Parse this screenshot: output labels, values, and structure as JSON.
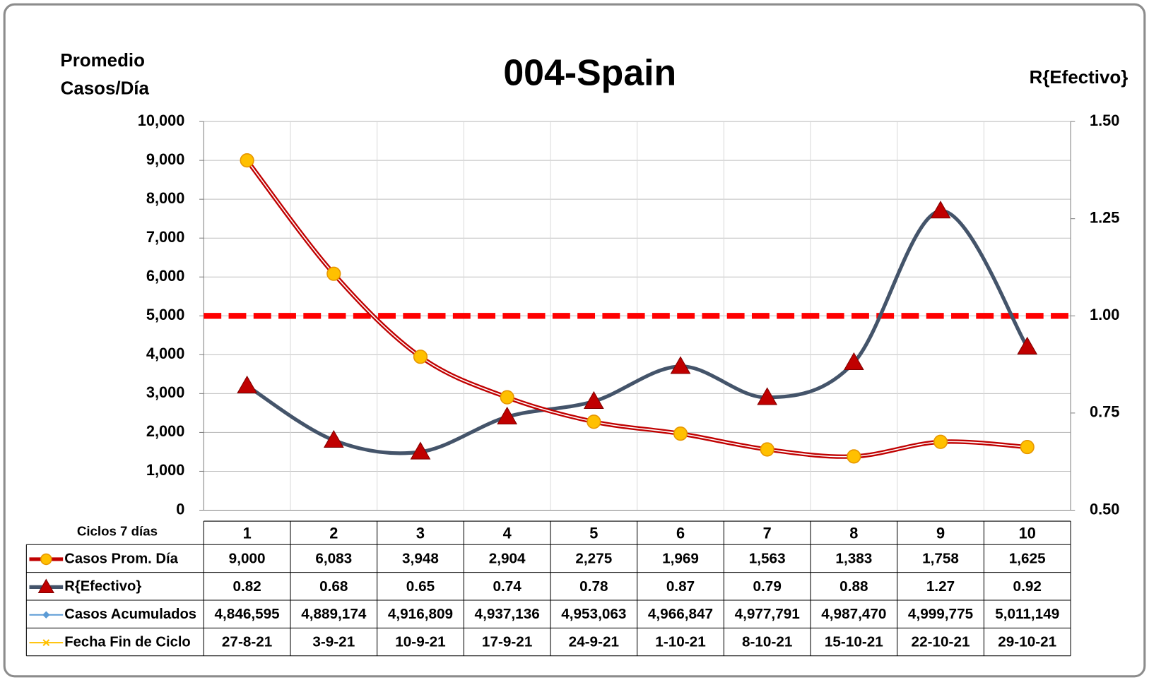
{
  "chart_data": {
    "type": "line",
    "title": "004-Spain",
    "ylabel": [
      "Promedio",
      "Casos/Día"
    ],
    "y2label": "R{Efectivo}",
    "xlabel": "Ciclos 7 días",
    "categories": [
      "1",
      "2",
      "3",
      "4",
      "5",
      "6",
      "7",
      "8",
      "9",
      "10"
    ],
    "ylim": [
      0,
      10000
    ],
    "yticks": [
      0,
      {
        "value": 1000,
        "label": "1,000"
      },
      {
        "value": 2000,
        "label": "2,000"
      },
      {
        "value": 3000,
        "label": "3,000"
      },
      {
        "value": 4000,
        "label": "4,000"
      },
      {
        "value": 5000,
        "label": "5,000"
      },
      {
        "value": 6000,
        "label": "6,000"
      },
      {
        "value": 7000,
        "label": "7,000"
      },
      {
        "value": 8000,
        "label": "8,000"
      },
      {
        "value": 9000,
        "label": "9,000"
      },
      {
        "value": 10000,
        "label": "10,000"
      }
    ],
    "y2lim": [
      0.5,
      1.5
    ],
    "y2ticks": [
      {
        "value": 0.5,
        "label": "0.50"
      },
      0.75,
      {
        "value": 1,
        "label": "1.00"
      },
      1.25,
      {
        "value": 1.5,
        "label": "1.50"
      }
    ],
    "grid": true,
    "reference_line": {
      "axis": "y2",
      "value": 1,
      "color": "#ff0000"
    },
    "series": [
      {
        "name": "Casos Prom. Día",
        "color": "#c00000",
        "marker": "circle",
        "marker_color": "#ffc000",
        "values": [
          9000,
          6083,
          3948,
          2904,
          2275,
          1969,
          1563,
          1383,
          1758,
          1625
        ],
        "value_labels": [
          "9,000",
          "6,083",
          "3,948",
          "2,904",
          "2,275",
          "1,969",
          "1,563",
          "1,383",
          "1,758",
          "1,625"
        ]
      },
      {
        "name": "R{Efectivo}",
        "color": "#44546a",
        "marker": "triangle",
        "marker_color": "#c00000",
        "axis": "y2",
        "values": [
          0.82,
          0.68,
          0.65,
          0.74,
          0.78,
          0.87,
          0.79,
          0.88,
          1.27,
          0.92
        ]
      },
      {
        "name": "Casos Acumulados",
        "color": "#5b9bd5",
        "marker": "diamond",
        "hidden": true,
        "values": [
          4846595,
          4889174,
          4916809,
          4937136,
          4953063,
          4966847,
          4977791,
          4987470,
          4999775,
          5011149
        ],
        "value_labels": [
          "4,846,595",
          "4,889,174",
          "4,916,809",
          "4,937,136",
          "4,953,063",
          "4,966,847",
          "4,977,791",
          "4,987,470",
          "4,999,775",
          "5,011,149"
        ]
      },
      {
        "name": "Fecha Fin de Ciclo",
        "color": "#ffc000",
        "marker": "x",
        "hidden": true,
        "values": [
          "27-8-21",
          "3-9-21",
          "10-9-21",
          "17-9-21",
          "24-9-21",
          "1-10-21",
          "8-10-21",
          "15-10-21",
          "22-10-21",
          "29-10-21"
        ]
      }
    ]
  }
}
